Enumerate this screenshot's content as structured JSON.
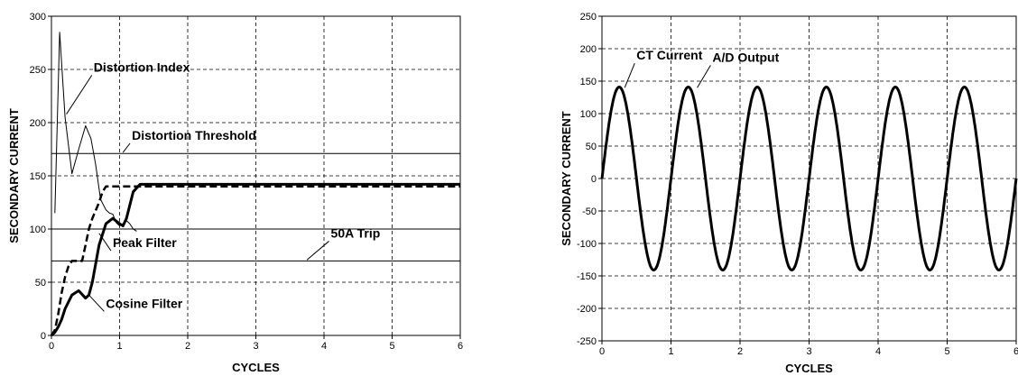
{
  "chart_data": [
    {
      "type": "line",
      "xlabel": "CYCLES",
      "ylabel": "SECONDARY CURRENT",
      "xlim": [
        0,
        6
      ],
      "ylim": [
        0,
        300
      ],
      "xticks": [
        "0",
        "1",
        "2",
        "3",
        "4",
        "5",
        "6"
      ],
      "yticks": [
        "0",
        "50",
        "100",
        "150",
        "200",
        "250",
        "300"
      ],
      "grid": true,
      "series": [
        {
          "style": "thin",
          "x": [
            0.05,
            0.12,
            0.2,
            0.3,
            0.4,
            0.5,
            0.58,
            0.65,
            0.72,
            0.8,
            0.85,
            0.9,
            0.95,
            1.0,
            1.05,
            1.1,
            1.15,
            1.2,
            1.25
          ],
          "y": [
            115,
            285,
            205,
            152,
            175,
            197,
            185,
            160,
            128,
            118,
            115,
            114,
            106,
            103,
            105,
            108,
            105,
            100,
            98
          ]
        },
        {
          "style": "dashed",
          "x": [
            0,
            0.05,
            0.1,
            0.15,
            0.2,
            0.25,
            0.3,
            0.45,
            0.5,
            0.55,
            0.6,
            0.7,
            0.75,
            0.8,
            0.9,
            6
          ],
          "y": [
            0,
            5,
            20,
            40,
            55,
            65,
            70,
            70,
            85,
            100,
            110,
            125,
            135,
            140,
            140,
            140
          ]
        },
        {
          "style": "thick",
          "x": [
            0,
            0.05,
            0.1,
            0.15,
            0.2,
            0.3,
            0.4,
            0.5,
            0.55,
            0.6,
            0.7,
            0.8,
            0.9,
            1.0,
            1.05,
            1.1,
            1.2,
            1.3,
            6
          ],
          "y": [
            0,
            3,
            8,
            15,
            25,
            38,
            42,
            35,
            38,
            50,
            85,
            105,
            110,
            105,
            103,
            110,
            135,
            142,
            142
          ]
        },
        {
          "style": "thin",
          "x": [
            0,
            6
          ],
          "y": [
            171,
            171
          ]
        },
        {
          "style": "thin",
          "x": [
            0,
            6
          ],
          "y": [
            70,
            70
          ]
        },
        {
          "style": "thin",
          "x": [
            0,
            6
          ],
          "y": [
            100,
            100
          ]
        }
      ],
      "annotations": [
        {
          "text": "Distortion Index",
          "x": 0.62,
          "y": 248,
          "ax": 0.22,
          "ay": 208
        },
        {
          "text": "Distortion Threshold",
          "x": 1.18,
          "y": 184,
          "ax": 1.05,
          "ay": 172
        },
        {
          "text": "Peak Filter",
          "x": 0.9,
          "y": 83,
          "ax": 0.7,
          "ay": 96
        },
        {
          "text": "50A Trip",
          "x": 4.1,
          "y": 92,
          "ax": 3.75,
          "ay": 71
        },
        {
          "text": "Cosine Filter",
          "x": 0.8,
          "y": 26,
          "ax": 0.55,
          "ay": 38
        }
      ]
    },
    {
      "type": "line",
      "xlabel": "CYCLES",
      "ylabel": "SECONDARY CURRENT",
      "xlim": [
        0,
        6
      ],
      "ylim": [
        -250,
        250
      ],
      "xticks": [
        "0",
        "1",
        "2",
        "3",
        "4",
        "5",
        "6"
      ],
      "yticks": [
        "-250",
        "-200",
        "-150",
        "-100",
        "-50",
        "0",
        "50",
        "100",
        "150",
        "200",
        "250"
      ],
      "grid": true,
      "series": [
        {
          "style": "thick",
          "function": "sine",
          "amplitude": 141,
          "x_start": 0,
          "x_end": 6
        }
      ],
      "annotations": [
        {
          "text": "CT Current",
          "x": 0.5,
          "y": 183,
          "ax": 0.33,
          "ay": 140
        },
        {
          "text": "A/D Output",
          "x": 1.6,
          "y": 180,
          "ax": 1.38,
          "ay": 140
        }
      ]
    }
  ]
}
